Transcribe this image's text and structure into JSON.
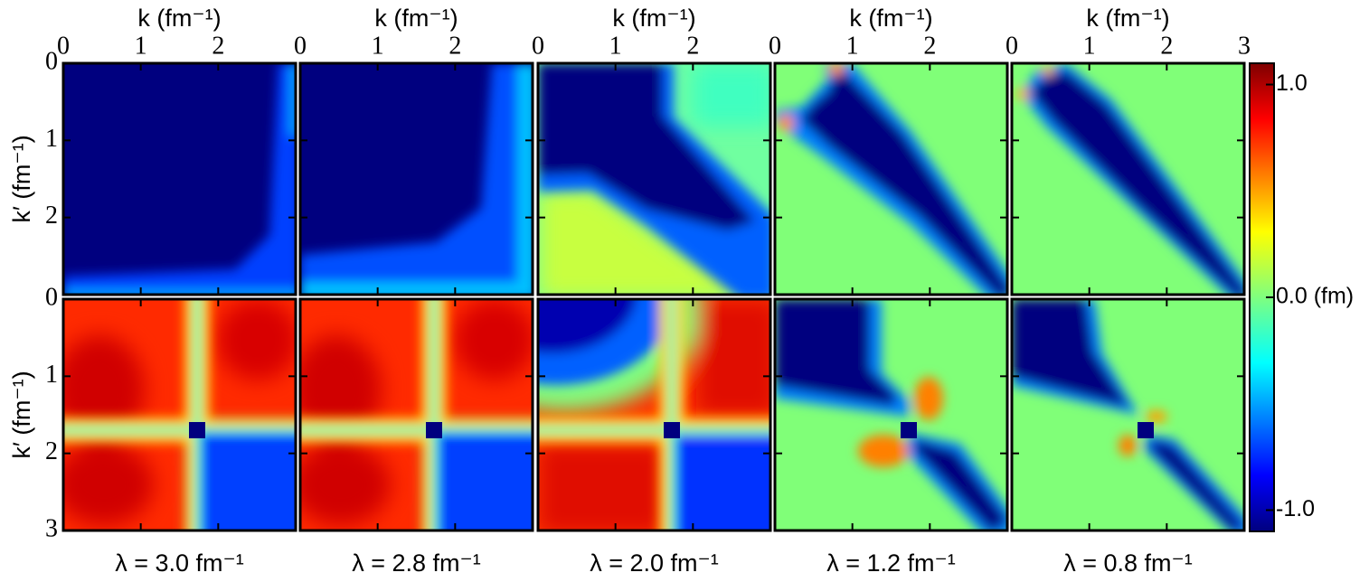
{
  "chart_data": {
    "type": "heatmap-grid",
    "x_label": "k (fm⁻¹)",
    "y_label": "k′ (fm⁻¹)",
    "xlim": [
      0,
      3
    ],
    "ylim": [
      0,
      3
    ],
    "columns": [
      {
        "lambda_label": "λ = 3.0 fm⁻¹",
        "xticks": [
          0,
          1,
          2
        ]
      },
      {
        "lambda_label": "λ = 2.8 fm⁻¹",
        "xticks": [
          0,
          1,
          2
        ]
      },
      {
        "lambda_label": "λ = 2.0 fm⁻¹",
        "xticks": [
          0,
          1,
          2
        ]
      },
      {
        "lambda_label": "λ = 1.2 fm⁻¹",
        "xticks": [
          0,
          1,
          2
        ]
      },
      {
        "lambda_label": "λ = 0.8 fm⁻¹",
        "xticks": [
          0,
          1,
          2,
          3
        ]
      }
    ],
    "rows": [
      {
        "yticks": [
          0,
          1,
          2
        ]
      },
      {
        "yticks": [
          0,
          1,
          2,
          3
        ]
      }
    ],
    "colorbar": {
      "lim": [
        -1.1,
        1.1
      ],
      "ticks": [
        {
          "value": 1,
          "label": "1.0"
        },
        {
          "value": 0,
          "label": "0.0 (fm)"
        },
        {
          "value": -1,
          "label": "-1.0"
        }
      ]
    }
  }
}
